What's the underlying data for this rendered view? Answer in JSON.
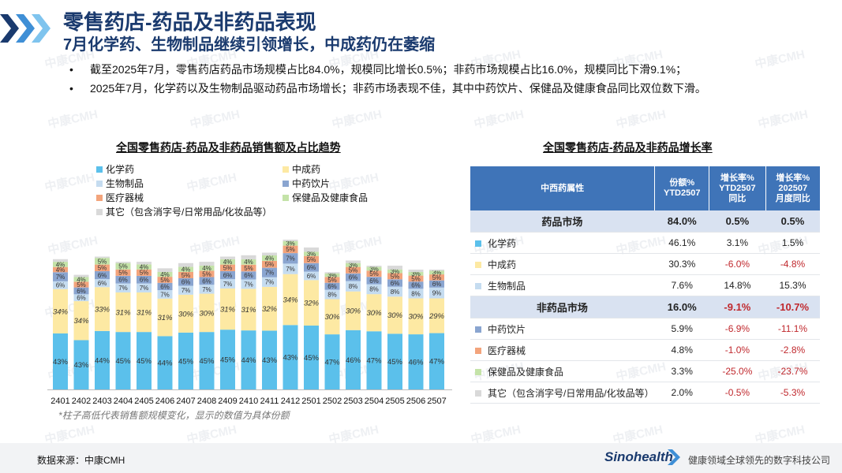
{
  "header": {
    "title": "零售药店-药品及非药品表现",
    "subtitle": "7月化学药、生物制品继续引领增长，中成药仍在萎缩"
  },
  "bullets": [
    "截至2025年7月，零售药店药品市场规模占比84.0%，规模同比增长0.5%；非药市场规模占比16.0%，规模同比下滑9.1%；",
    "2025年7月，化学药以及生物制品驱动药品市场增长；非药市场表现不佳，其中中药饮片、保健品及健康食品同比双位数下滑。"
  ],
  "bullet_symbol": "•",
  "watermark_text": "中康CMH",
  "left_chart": {
    "title": "全国零售药店-药品及非药品销售额及占比趋势",
    "footnote": "*柱子高低代表销售额规模变化，显示的数值为具体份额"
  },
  "chart_data": {
    "type": "bar",
    "stacked": true,
    "title": "全国零售药店-药品及非药品销售额及占比趋势",
    "categories": [
      "2401",
      "2402",
      "2403",
      "2404",
      "2405",
      "2406",
      "2407",
      "2408",
      "2409",
      "2410",
      "2411",
      "2412",
      "2501",
      "2502",
      "2503",
      "2504",
      "2505",
      "2506",
      "2507"
    ],
    "relative_sales": [
      1.0,
      0.88,
      1.02,
      0.98,
      0.98,
      0.93,
      0.97,
      0.98,
      1.02,
      1.03,
      1.05,
      1.15,
      1.09,
      0.9,
      0.99,
      0.95,
      0.95,
      0.92,
      0.92
    ],
    "legend_position": "top-left",
    "series": [
      {
        "name": "化学药",
        "color": "#5bc0eb",
        "values": [
          43,
          43,
          44,
          45,
          45,
          44,
          45,
          45,
          45,
          44,
          43,
          43,
          45,
          47,
          46,
          47,
          45,
          46,
          47
        ]
      },
      {
        "name": "中成药",
        "color": "#fde9a3",
        "values": [
          34,
          34,
          33,
          31,
          31,
          31,
          30,
          30,
          31,
          31,
          32,
          34,
          32,
          30,
          30,
          30,
          30,
          30,
          29
        ]
      },
      {
        "name": "生物制品",
        "color": "#c5dcf0",
        "values": [
          6,
          6,
          6,
          7,
          7,
          7,
          7,
          7,
          7,
          7,
          7,
          7,
          6,
          8,
          8,
          8,
          8,
          8,
          9
        ]
      },
      {
        "name": "中药饮片",
        "color": "#8aa5d0",
        "values": [
          7,
          6,
          6,
          6,
          6,
          6,
          6,
          6,
          6,
          6,
          7,
          7,
          6,
          6,
          6,
          6,
          6,
          6,
          6
        ]
      },
      {
        "name": "医疗器械",
        "color": "#f3a47c",
        "values": [
          4,
          5,
          5,
          5,
          5,
          5,
          5,
          5,
          5,
          5,
          5,
          5,
          5,
          5,
          5,
          5,
          5,
          5,
          5
        ]
      },
      {
        "name": "保健品及健康食品",
        "color": "#c4e3a8",
        "values": [
          4,
          4,
          5,
          5,
          4,
          4,
          4,
          4,
          4,
          4,
          4,
          3,
          3,
          3,
          3,
          3,
          3,
          3,
          3
        ]
      },
      {
        "name": "其它（包含消字号/日常用品/化妆品等）",
        "color": "#d9d9d9",
        "values": [
          2,
          2,
          1,
          1,
          2,
          3,
          3,
          3,
          2,
          3,
          2,
          1,
          3,
          1,
          2,
          1,
          3,
          2,
          1
        ]
      }
    ],
    "labeled_series": [
      "化学药",
      "中成药",
      "生物制品",
      "中药饮片",
      "医疗器械",
      "保健品及健康食品"
    ],
    "label_suffix": "%"
  },
  "growth_table": {
    "title": "全国零售药店-药品及非药品增长率",
    "headers": {
      "category": "中西药属性",
      "share": "份额%\nYTD2507",
      "ytd_growth": "增长率%\nYTD2507\n同比",
      "month_growth": "增长率%\n202507\n月度同比"
    },
    "rows": [
      {
        "type": "group",
        "label": "药品市场",
        "share": "84.0%",
        "ytd": "0.5%",
        "month": "0.5%"
      },
      {
        "type": "item",
        "label": "化学药",
        "color": "#5bc0eb",
        "share": "46.1%",
        "ytd": "3.1%",
        "month": "1.5%"
      },
      {
        "type": "item",
        "label": "中成药",
        "color": "#fde9a3",
        "share": "30.3%",
        "ytd": "-6.0%",
        "month": "-4.8%"
      },
      {
        "type": "item",
        "label": "生物制品",
        "color": "#c5dcf0",
        "share": "7.6%",
        "ytd": "14.8%",
        "month": "15.3%"
      },
      {
        "type": "group",
        "label": "非药品市场",
        "share": "16.0%",
        "ytd": "-9.1%",
        "month": "-10.7%"
      },
      {
        "type": "item",
        "label": "中药饮片",
        "color": "#8aa5d0",
        "share": "5.9%",
        "ytd": "-6.9%",
        "month": "-11.1%"
      },
      {
        "type": "item",
        "label": "医疗器械",
        "color": "#f3a47c",
        "share": "4.8%",
        "ytd": "-1.0%",
        "month": "-2.8%"
      },
      {
        "type": "item",
        "label": "保健品及健康食品",
        "color": "#c4e3a8",
        "share": "3.3%",
        "ytd": "-25.0%",
        "month": "-23.7%"
      },
      {
        "type": "item",
        "label": "其它（包含消字号/日常用品/化妆品等）",
        "color": "#d9d9d9",
        "share": "2.0%",
        "ytd": "-0.5%",
        "month": "-5.3%"
      }
    ]
  },
  "footer": {
    "source": "数据来源：中康CMH",
    "logo": "Sinohealth",
    "slogan": "健康领域全球领先的数字科技公司"
  },
  "colors": {
    "brand_navy": "#1a3a6e",
    "table_header": "#3f74b8",
    "group_row": "#d9e2f1",
    "negative": "#c0282d"
  }
}
